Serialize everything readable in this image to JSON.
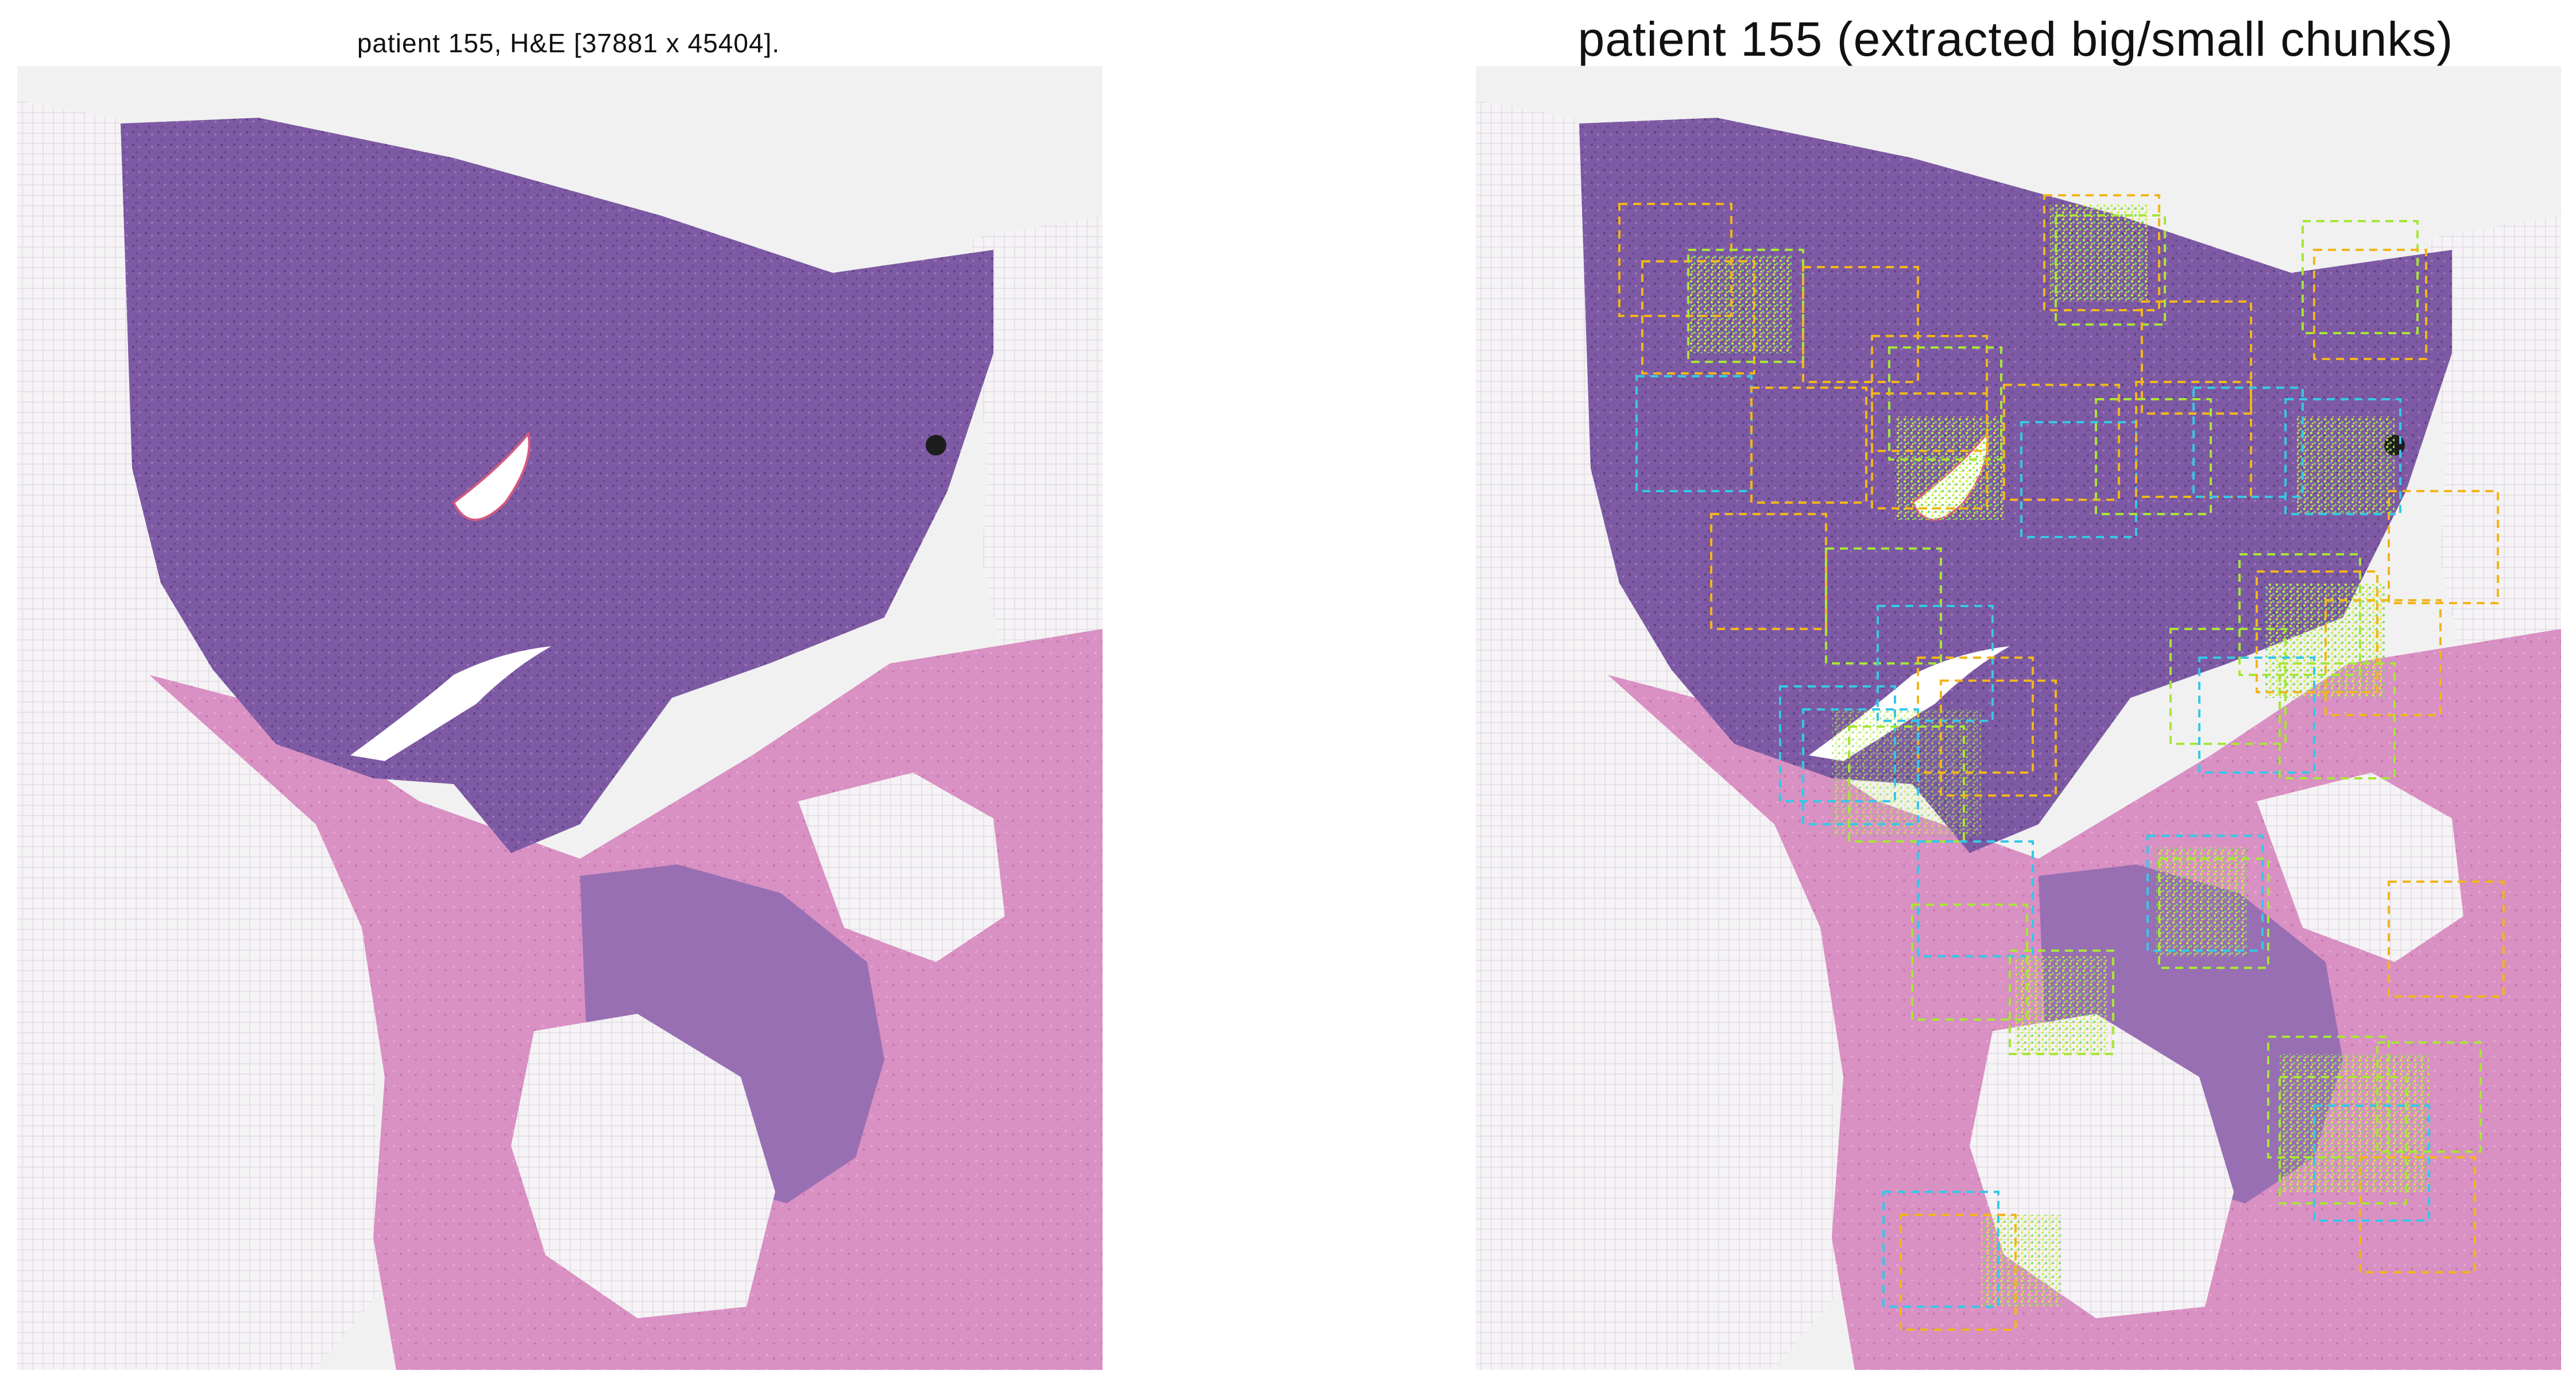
{
  "figure": {
    "left_panel": {
      "title": "patient 155, H&E [37881 x 45404]."
    },
    "right_panel": {
      "title": "patient 155 (extracted big/small chunks)"
    }
  },
  "colors": {
    "background": "#f1f1f1",
    "tissue_dark": "#7c5aa0",
    "tissue_pink": "#d98bbf",
    "fat_white": "#f7f4f7",
    "chunk_orange": "#f2b51c",
    "chunk_lime": "#a6e637",
    "chunk_cyan": "#35c8e8",
    "dense_points": "#c7f23a"
  }
}
